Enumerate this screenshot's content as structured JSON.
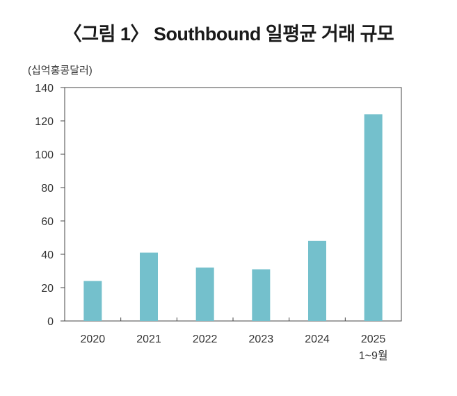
{
  "title": "〈그림 1〉 Southbound 일평균 거래 규모",
  "chart_data": {
    "type": "bar",
    "title": "〈그림 1〉 Southbound 일평균 거래 규모",
    "ylabel": "(십억홍콩달러)",
    "xlabel": "",
    "categories": [
      "2020",
      "2021",
      "2022",
      "2023",
      "2024",
      "2025\n1~9월"
    ],
    "category_lines": [
      [
        "2020"
      ],
      [
        "2021"
      ],
      [
        "2022"
      ],
      [
        "2023"
      ],
      [
        "2024"
      ],
      [
        "2025",
        "1~9월"
      ]
    ],
    "values": [
      24,
      41,
      32,
      31,
      48,
      124
    ],
    "ylim": [
      0,
      140
    ],
    "yticks": [
      0,
      20,
      40,
      60,
      80,
      100,
      120,
      140
    ],
    "grid": false,
    "legend": "none",
    "bar_color": "#74c0cc"
  }
}
